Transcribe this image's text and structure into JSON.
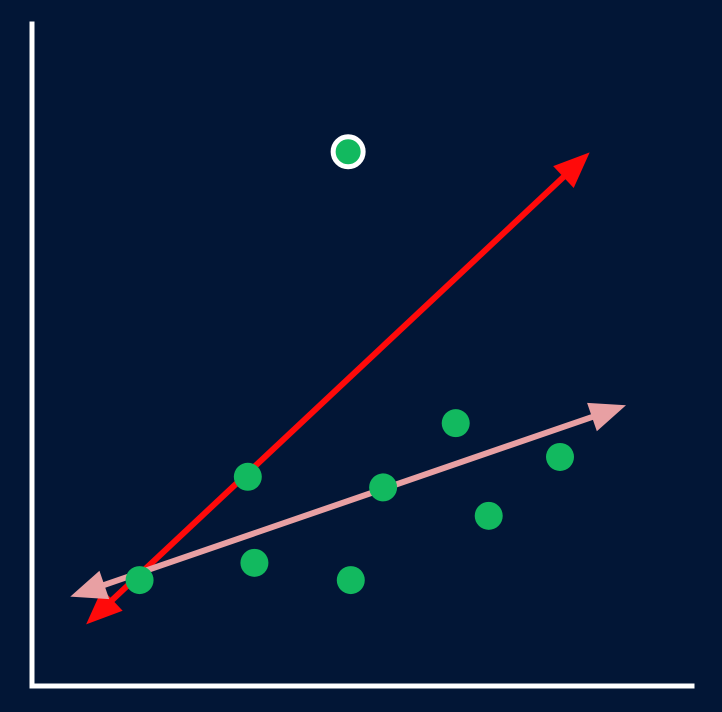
{
  "colors": {
    "background": "#021636",
    "axis": "#ffffff",
    "point": "#12b95f",
    "outlier_stroke": "#ffffff",
    "line_steep": "#ff0a0a",
    "line_shallow": "#e8a0a3"
  },
  "chart_data": {
    "type": "scatter",
    "title": "",
    "xlabel": "",
    "ylabel": "",
    "xlim": [
      0,
      10
    ],
    "ylim": [
      0,
      10
    ],
    "grid": false,
    "legend": "none",
    "points": [
      {
        "x": 1.63,
        "y": 1.6,
        "outlier": false
      },
      {
        "x": 3.27,
        "y": 3.16,
        "outlier": false
      },
      {
        "x": 3.37,
        "y": 1.86,
        "outlier": false
      },
      {
        "x": 4.83,
        "y": 1.6,
        "outlier": false
      },
      {
        "x": 5.32,
        "y": 3.0,
        "outlier": false
      },
      {
        "x": 6.42,
        "y": 3.97,
        "outlier": false
      },
      {
        "x": 6.92,
        "y": 2.57,
        "outlier": false
      },
      {
        "x": 8.0,
        "y": 3.46,
        "outlier": false
      },
      {
        "x": 4.79,
        "y": 8.07,
        "outlier": true
      }
    ],
    "lines": [
      {
        "key": "steep",
        "from": {
          "x": 0.82,
          "y": 0.93
        },
        "to": {
          "x": 8.45,
          "y": 8.06
        }
      },
      {
        "key": "shallow",
        "from": {
          "x": 0.58,
          "y": 1.35
        },
        "to": {
          "x": 9.0,
          "y": 4.24
        }
      }
    ]
  }
}
